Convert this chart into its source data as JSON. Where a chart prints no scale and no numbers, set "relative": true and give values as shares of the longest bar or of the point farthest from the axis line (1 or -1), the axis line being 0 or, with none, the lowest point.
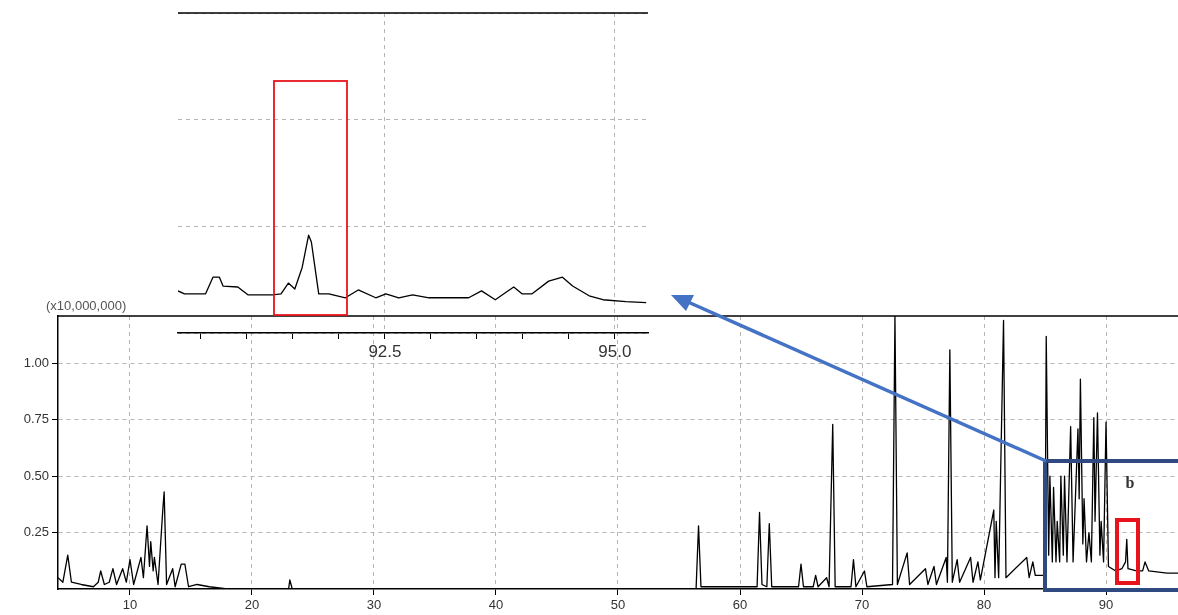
{
  "chart_data": [
    {
      "type": "line",
      "color": "#000000",
      "marker": "none",
      "grid": true,
      "xlim": [
        4.1,
        95.9
      ],
      "xticks": [
        10,
        20,
        30,
        40,
        50,
        60,
        70,
        80,
        90
      ],
      "ylim": [
        0,
        1.21
      ],
      "yticks": [
        {
          "value": 0.25,
          "label": "0.25"
        },
        {
          "value": 0.5,
          "label": "0.50"
        },
        {
          "value": 0.75,
          "label": "0.75"
        },
        {
          "value": 1,
          "label": "1.00"
        }
      ],
      "annotations": [
        "(x10,000,000)",
        "b"
      ],
      "x": [
        4.1,
        4.5,
        4.9,
        5.2,
        6.0,
        7.0,
        7.4,
        7.6,
        7.9,
        8.3,
        8.6,
        8.9,
        9.4,
        9.7,
        10.0,
        10.3,
        10.9,
        11.1,
        11.4,
        11.6,
        11.7,
        11.9,
        12.0,
        12.3,
        12.7,
        12.8,
        13.0,
        13.5,
        13.7,
        14.2,
        14.5,
        14.8,
        15.5,
        16.5,
        18,
        23.0,
        23.1,
        23.3,
        30,
        40,
        50,
        56.4,
        56.6,
        56.8,
        61.4,
        61.6,
        61.8,
        62.2,
        62.4,
        62.6,
        64.8,
        65.0,
        65.2,
        66.0,
        66.2,
        66.4,
        67.1,
        67.3,
        67.6,
        67.8,
        69.1,
        69.3,
        69.5,
        70.2,
        70.4,
        72.5,
        72.7,
        72.9,
        73.7,
        73.9,
        75.2,
        75.4,
        75.9,
        76.1,
        76.9,
        77.0,
        77.2,
        77.4,
        77.8,
        78.0,
        78.9,
        79.1,
        79.5,
        79.7,
        80.8,
        80.9,
        81.0,
        81.2,
        81.6,
        81.8,
        83.5,
        83.7,
        84.0,
        84.2,
        85.0,
        85.1,
        85.3,
        85.4,
        85.6,
        85.7,
        85.9,
        86.0,
        86.2,
        86.3,
        86.5,
        86.6,
        86.8,
        87.1,
        87.3,
        87.7,
        87.8,
        87.9,
        88.1,
        88.2,
        88.4,
        88.6,
        88.8,
        89.0,
        89.1,
        89.3,
        89.5,
        89.6,
        89.8,
        90.0,
        90.2,
        90.8,
        91.3,
        91.6,
        91.7,
        91.8,
        92.5,
        93.0,
        93.2,
        93.5,
        95.0,
        95.9
      ],
      "values": [
        0.05,
        0.03,
        0.15,
        0.03,
        0.02,
        0.01,
        0.03,
        0.08,
        0.02,
        0.03,
        0.09,
        0.02,
        0.09,
        0.03,
        0.13,
        0.02,
        0.14,
        0.05,
        0.28,
        0.1,
        0.21,
        0.08,
        0.14,
        0.02,
        0.36,
        0.43,
        0.02,
        0.09,
        0.01,
        0.11,
        0.11,
        0.01,
        0.02,
        0.01,
        0,
        0,
        0.04,
        0,
        0,
        0,
        0,
        0,
        0.28,
        0.01,
        0.01,
        0.34,
        0.02,
        0.01,
        0.29,
        0.01,
        0.01,
        0.11,
        0.01,
        0.01,
        0.06,
        0.01,
        0.05,
        0.01,
        0.73,
        0.01,
        0.01,
        0.13,
        0.01,
        0.08,
        0.01,
        0.02,
        1.21,
        0.02,
        0.16,
        0.02,
        0.09,
        0.02,
        0.1,
        0.02,
        0.14,
        0.03,
        1.06,
        0.03,
        0.13,
        0.03,
        0.14,
        0.03,
        0.12,
        0.04,
        0.35,
        0.05,
        0.3,
        0.05,
        1.19,
        0.05,
        0.14,
        0.05,
        0.12,
        0.06,
        0.06,
        1.12,
        0.15,
        0.5,
        0.12,
        0.45,
        0.12,
        0.3,
        0.12,
        0.5,
        0.15,
        0.5,
        0.12,
        0.72,
        0.12,
        0.71,
        0.4,
        0.93,
        0.2,
        0.4,
        0.12,
        0.25,
        0.12,
        0.76,
        0.3,
        0.78,
        0.15,
        0.3,
        0.12,
        0.74,
        0.1,
        0.08,
        0.09,
        0.12,
        0.22,
        0.09,
        0.08,
        0.08,
        0.12,
        0.08,
        0.07,
        0.07
      ]
    },
    {
      "type": "line",
      "color": "#000000",
      "marker": "none",
      "grid": true,
      "relative": true,
      "tick_labels": "x",
      "xlim": [
        90.25,
        95.36
      ],
      "xticks": [
        {
          "value": 90.5,
          "label": null
        },
        {
          "value": 91,
          "label": null
        },
        {
          "value": 91.5,
          "label": null
        },
        {
          "value": 92,
          "label": null
        },
        {
          "value": 92.5,
          "label": "92.5"
        },
        {
          "value": 93,
          "label": null
        },
        {
          "value": 93.5,
          "label": null
        },
        {
          "value": 94,
          "label": null
        },
        {
          "value": 94.5,
          "label": null
        },
        {
          "value": 95,
          "label": "95.0"
        }
      ],
      "x": [
        90.25,
        90.32,
        90.55,
        90.63,
        90.7,
        90.74,
        90.9,
        91.01,
        91.28,
        91.37,
        91.45,
        91.52,
        91.6,
        91.67,
        91.7,
        91.78,
        91.89,
        92.07,
        92.21,
        92.4,
        92.51,
        92.65,
        92.8,
        92.98,
        93.41,
        93.55,
        93.7,
        93.9,
        93.99,
        94.1,
        94.28,
        94.43,
        94.54,
        94.72,
        94.87,
        95.12,
        95.34
      ],
      "values": [
        0.43,
        0.4,
        0.4,
        0.57,
        0.57,
        0.48,
        0.47,
        0.39,
        0.39,
        0.4,
        0.51,
        0.45,
        0.67,
        1.0,
        0.93,
        0.4,
        0.4,
        0.36,
        0.44,
        0.36,
        0.4,
        0.36,
        0.39,
        0.36,
        0.36,
        0.43,
        0.34,
        0.47,
        0.4,
        0.4,
        0.53,
        0.57,
        0.48,
        0.38,
        0.34,
        0.32,
        0.31
      ]
    }
  ]
}
